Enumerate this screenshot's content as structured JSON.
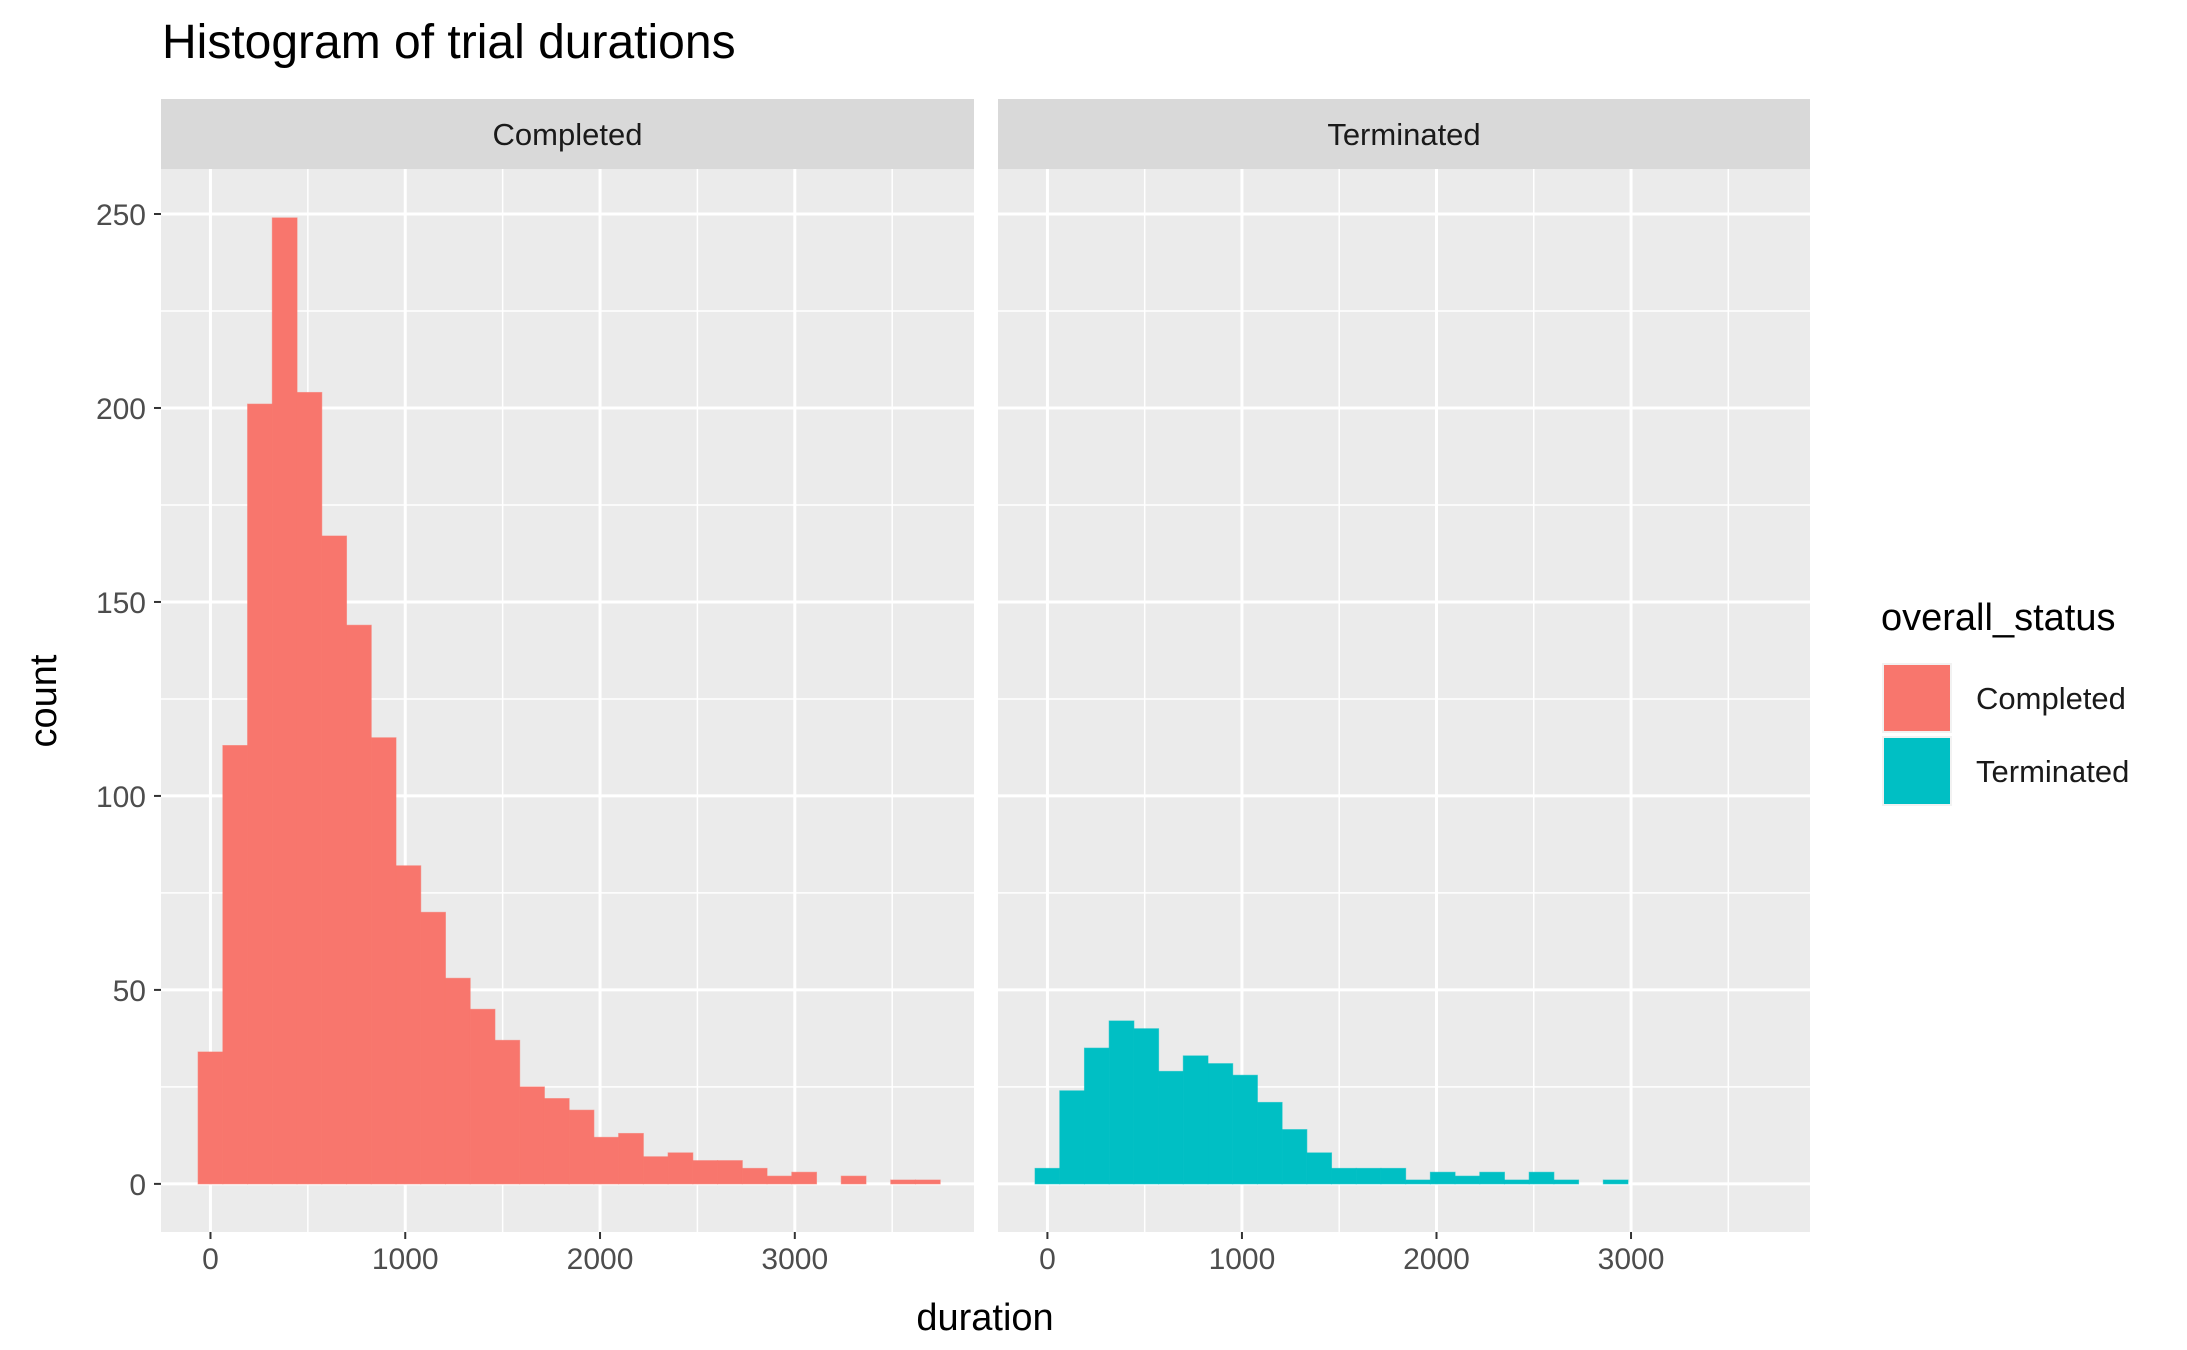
{
  "chart_data": {
    "type": "bar",
    "subtype": "faceted-histogram",
    "title": "Histogram of trial durations",
    "xlabel": "duration",
    "ylabel": "count",
    "xlim": [
      -254,
      3920
    ],
    "ylim": [
      -12.4,
      261.6
    ],
    "x_ticks": [
      0,
      1000,
      2000,
      3000
    ],
    "y_ticks": [
      0,
      50,
      100,
      150,
      200,
      250
    ],
    "grid": true,
    "bin_width": 127,
    "bin_centers": [
      0,
      127,
      254,
      381,
      508,
      635,
      762,
      889,
      1016,
      1143,
      1270,
      1397,
      1524,
      1651,
      1778,
      1905,
      2032,
      2159,
      2286,
      2413,
      2540,
      2667,
      2794,
      2921,
      3048,
      3175,
      3302,
      3429,
      3556,
      3683
    ],
    "legend": {
      "title": "overall_status",
      "placement": "right",
      "entries": [
        {
          "label": "Completed",
          "color": "#F8766D"
        },
        {
          "label": "Terminated",
          "color": "#00BFC4"
        }
      ]
    },
    "facets": [
      {
        "name": "Completed",
        "color": "#F8766D",
        "values": [
          34,
          113,
          201,
          249,
          204,
          167,
          144,
          115,
          82,
          70,
          53,
          45,
          37,
          25,
          22,
          19,
          12,
          13,
          7,
          8,
          6,
          6,
          4,
          2,
          3,
          0,
          2,
          0,
          1,
          1
        ]
      },
      {
        "name": "Terminated",
        "color": "#00BFC4",
        "values": [
          4,
          24,
          35,
          42,
          40,
          29,
          33,
          31,
          28,
          21,
          14,
          8,
          4,
          4,
          4,
          1,
          3,
          2,
          3,
          1,
          3,
          1,
          0,
          1,
          0,
          0,
          0,
          0,
          0,
          0
        ]
      }
    ]
  }
}
